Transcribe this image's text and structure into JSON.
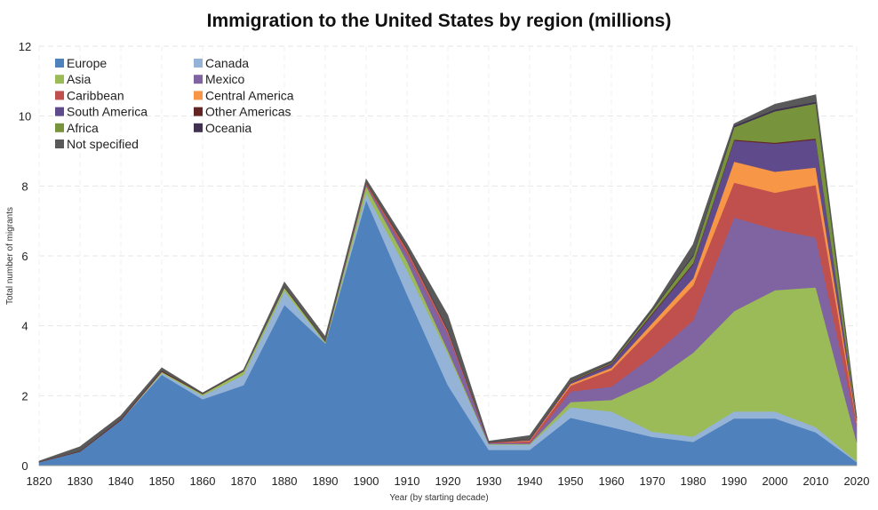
{
  "chart_data": {
    "type": "area",
    "stacked": true,
    "title": "Immigration to the United States by region (millions)",
    "xlabel": "Year (by starting decade)",
    "ylabel": "Total number of migrants",
    "ylim": [
      0,
      12
    ],
    "yticks": [
      0,
      2,
      4,
      6,
      8,
      10,
      12
    ],
    "grid": true,
    "legend": "top-left",
    "x": [
      1820,
      1830,
      1840,
      1850,
      1860,
      1870,
      1880,
      1890,
      1900,
      1910,
      1920,
      1930,
      1940,
      1950,
      1960,
      1970,
      1980,
      1990,
      2000,
      2010,
      2020
    ],
    "series": [
      {
        "name": "Europe",
        "color": "#4f81bd",
        "values": [
          0.1,
          0.4,
          1.3,
          2.6,
          1.9,
          2.3,
          4.6,
          3.5,
          7.6,
          4.9,
          2.3,
          0.45,
          0.45,
          1.37,
          1.1,
          0.82,
          0.68,
          1.35,
          1.35,
          0.95,
          0.1
        ]
      },
      {
        "name": "Canada",
        "color": "#95b3d7",
        "values": [
          0,
          0,
          0,
          0.05,
          0.1,
          0.3,
          0.4,
          0,
          0.2,
          0.7,
          0.9,
          0.15,
          0.15,
          0.3,
          0.45,
          0.15,
          0.15,
          0.2,
          0.2,
          0.15,
          0.02
        ]
      },
      {
        "name": "Asia",
        "color": "#9bbb59",
        "values": [
          0,
          0,
          0,
          0.04,
          0.05,
          0.1,
          0.1,
          0.05,
          0.2,
          0.25,
          0.1,
          0.02,
          0.02,
          0.15,
          0.33,
          1.44,
          2.4,
          2.87,
          3.47,
          4.0,
          0.55
        ]
      },
      {
        "name": "Mexico",
        "color": "#8064a2",
        "values": [
          0,
          0,
          0,
          0,
          0,
          0,
          0,
          0,
          0.03,
          0.2,
          0.45,
          0.03,
          0.03,
          0.3,
          0.38,
          0.72,
          0.93,
          2.68,
          1.74,
          1.43,
          0.45
        ]
      },
      {
        "name": "Caribbean",
        "color": "#c0504d",
        "values": [
          0,
          0,
          0,
          0,
          0,
          0,
          0,
          0,
          0.05,
          0.1,
          0.07,
          0.01,
          0.05,
          0.17,
          0.47,
          0.8,
          1.0,
          1.0,
          1.05,
          1.5,
          0.1
        ]
      },
      {
        "name": "Central America",
        "color": "#f79646",
        "values": [
          0,
          0,
          0,
          0,
          0,
          0,
          0,
          0,
          0,
          0.02,
          0.02,
          0,
          0.02,
          0.05,
          0.07,
          0.15,
          0.2,
          0.6,
          0.6,
          0.5,
          0.05
        ]
      },
      {
        "name": "South America",
        "color": "#5f4b8b",
        "values": [
          0,
          0,
          0,
          0,
          0,
          0,
          0,
          0,
          0,
          0.02,
          0.04,
          0,
          0.02,
          0.05,
          0.1,
          0.25,
          0.4,
          0.6,
          0.8,
          0.8,
          0.03
        ]
      },
      {
        "name": "Other Americas",
        "color": "#632523",
        "values": [
          0.01,
          0.02,
          0.03,
          0.03,
          0.01,
          0.01,
          0.01,
          0.01,
          0.01,
          0.02,
          0.02,
          0.01,
          0.01,
          0.02,
          0.02,
          0.03,
          0.03,
          0.03,
          0.03,
          0.03,
          0.01
        ]
      },
      {
        "name": "Africa",
        "color": "#77933c",
        "values": [
          0,
          0,
          0,
          0,
          0,
          0,
          0,
          0,
          0.01,
          0.01,
          0.01,
          0,
          0.01,
          0.02,
          0.03,
          0.08,
          0.2,
          0.35,
          0.9,
          1.0,
          0.05
        ]
      },
      {
        "name": "Oceania",
        "color": "#403151",
        "values": [
          0,
          0,
          0,
          0,
          0.01,
          0.01,
          0.01,
          0.01,
          0.01,
          0.02,
          0.01,
          0.01,
          0.01,
          0.01,
          0.02,
          0.03,
          0.04,
          0.05,
          0.05,
          0.05,
          0.01
        ]
      },
      {
        "name": "Not specified",
        "color": "#595959",
        "values": [
          0.02,
          0.12,
          0.1,
          0.08,
          0.01,
          0.02,
          0.13,
          0.12,
          0.09,
          0.11,
          0.38,
          0.02,
          0.09,
          0.06,
          0.03,
          0.04,
          0.3,
          0.05,
          0.15,
          0.2,
          0.03
        ]
      }
    ]
  }
}
